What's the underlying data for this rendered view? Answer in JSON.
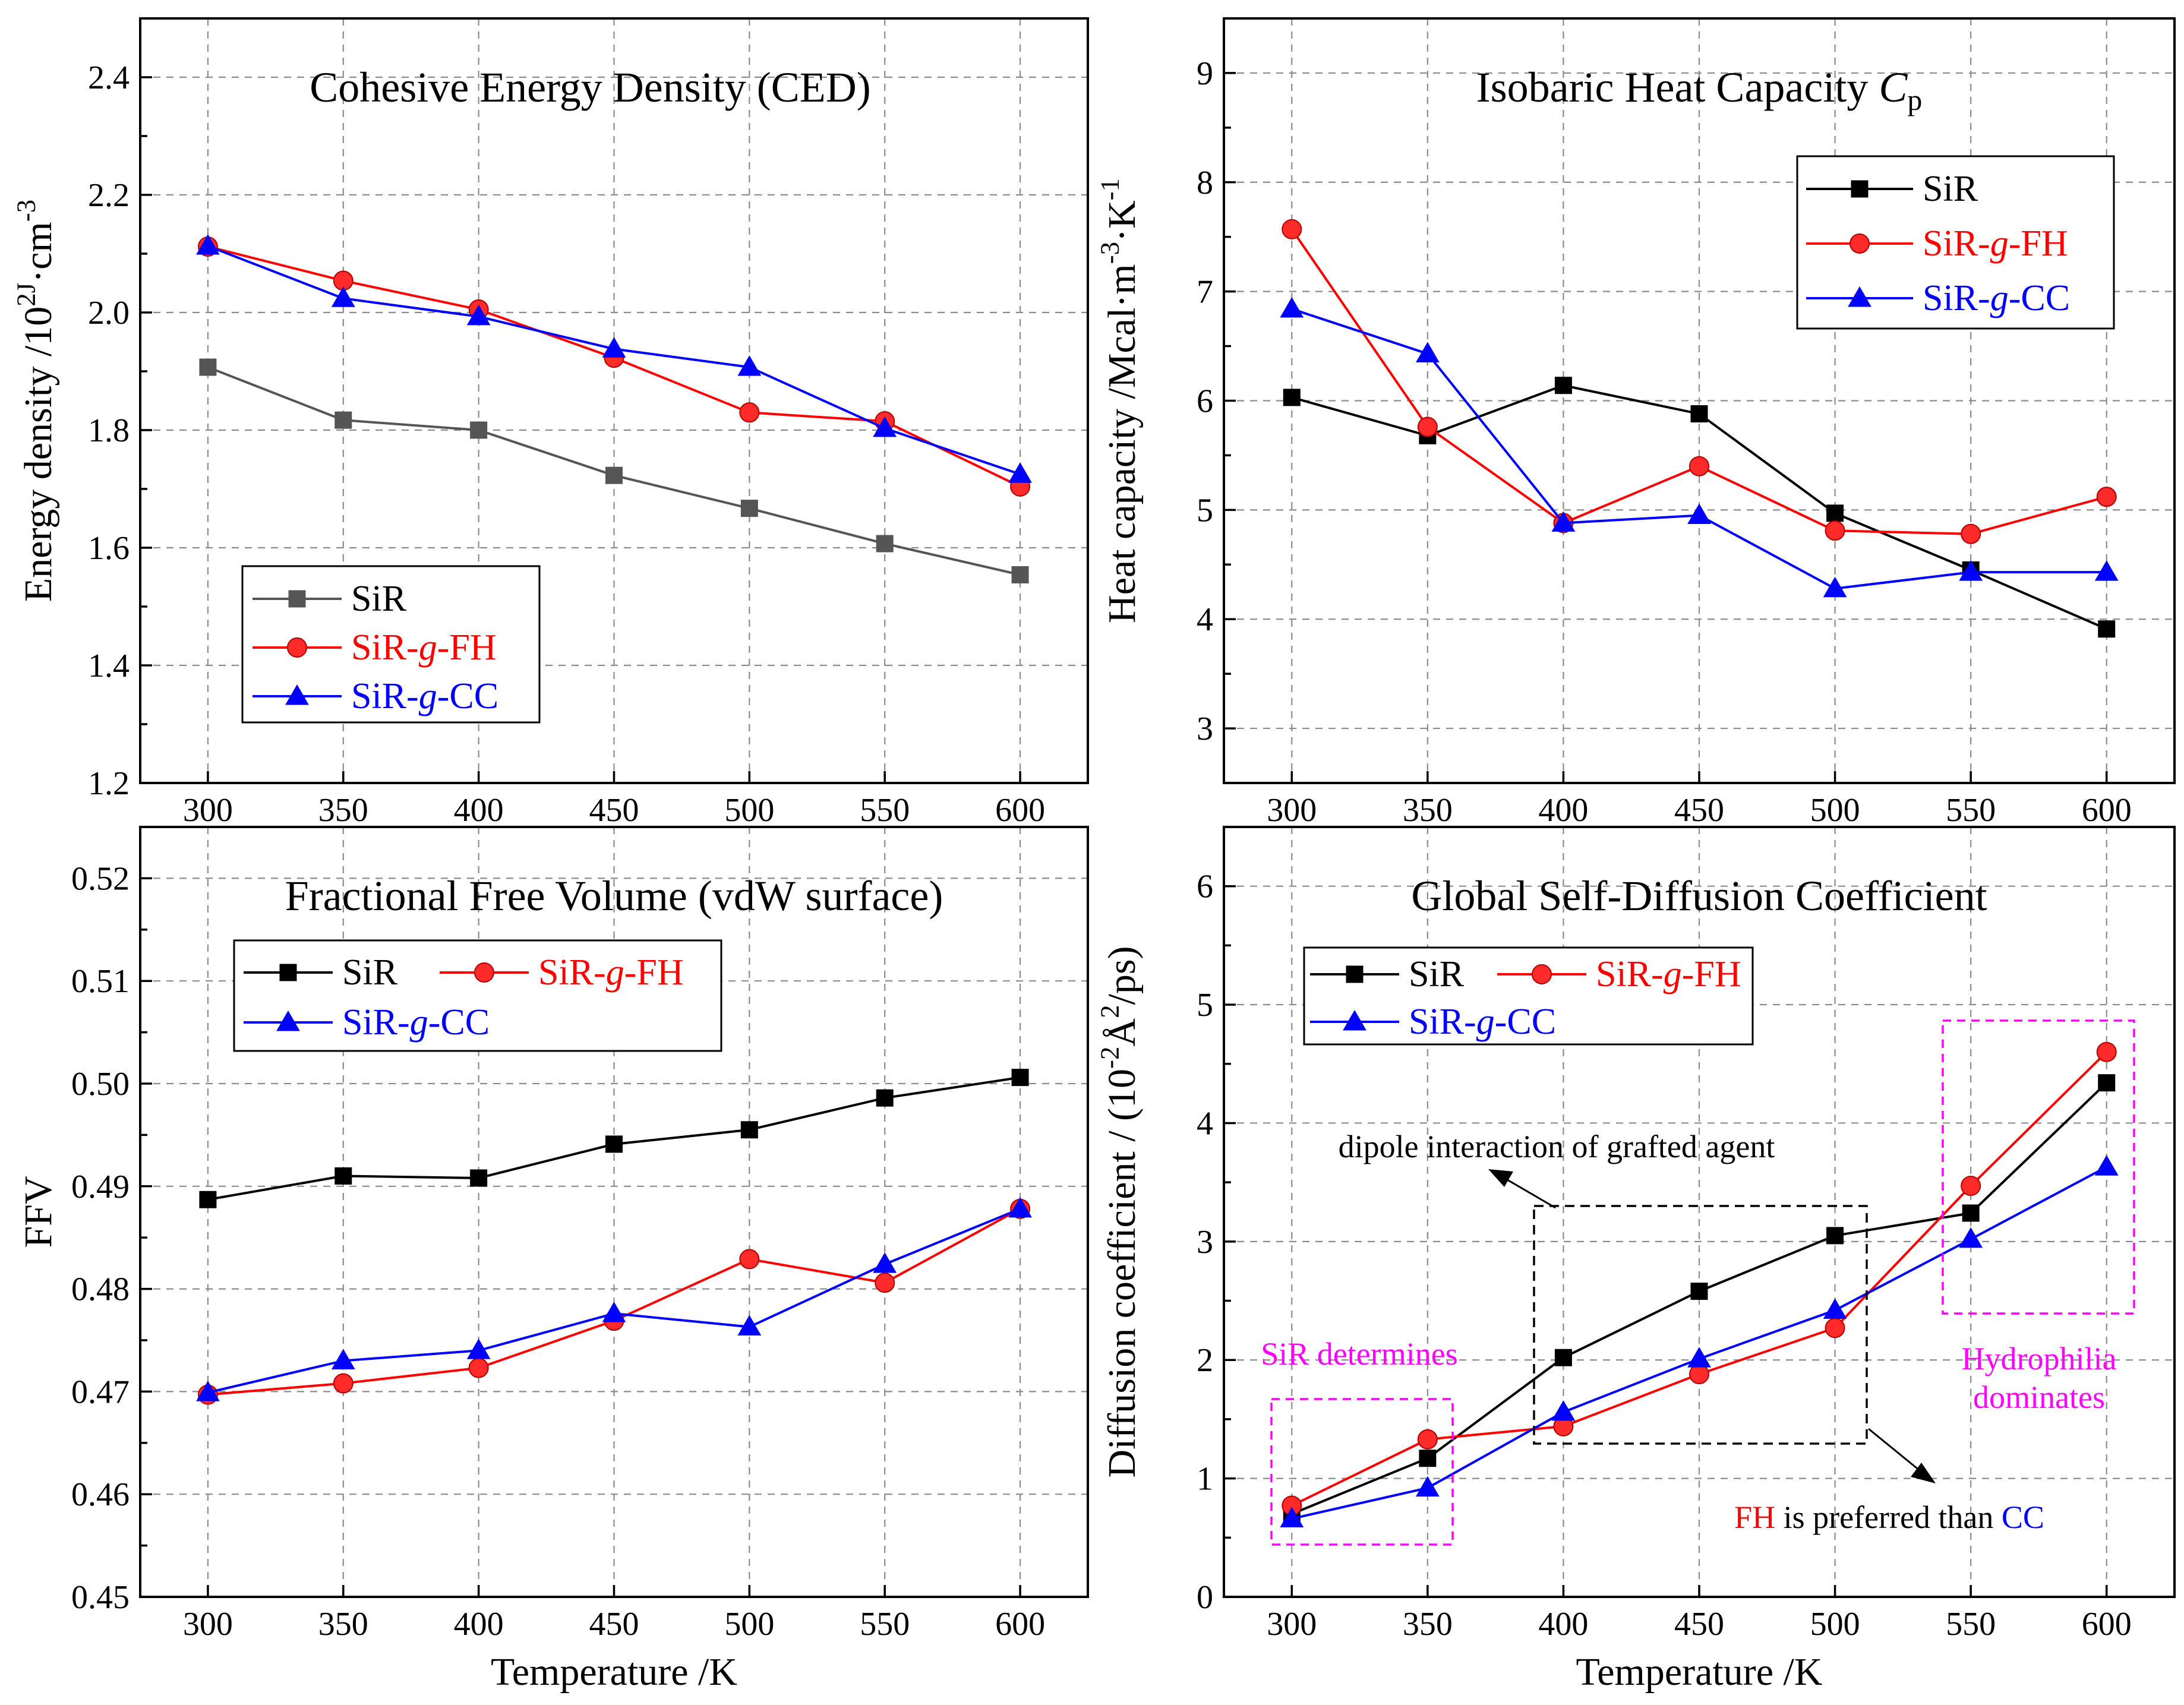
{
  "figure": {
    "x_axis_label": "Temperature /K"
  },
  "chart_data": [
    {
      "type": "line",
      "title": "Cohesive Energy Density (CED)",
      "xlabel": "Temperature /K",
      "ylabel": "Energy density /10^2J·cm^-3",
      "x": [
        300,
        350,
        400,
        450,
        500,
        550,
        600
      ],
      "xlim": [
        275,
        625
      ],
      "ylim": [
        1.2,
        2.5
      ],
      "yticks": [
        "1.2",
        "1.4",
        "1.6",
        "1.8",
        "2.0",
        "2.2",
        "2.4"
      ],
      "legend_position": "bottom-left",
      "series": [
        {
          "name": "SiR",
          "color": "#555555",
          "marker": "square",
          "values": [
            1.907,
            1.817,
            1.8,
            1.723,
            1.667,
            1.607,
            1.554
          ]
        },
        {
          "name": "SiR-g-FH",
          "color": "#ff0000",
          "marker": "circle",
          "values": [
            2.112,
            2.054,
            2.005,
            1.923,
            1.83,
            1.815,
            1.704
          ]
        },
        {
          "name": "SiR-g-CC",
          "color": "#0000ff",
          "marker": "triangle",
          "values": [
            2.113,
            2.024,
            1.993,
            1.938,
            1.907,
            1.803,
            1.725
          ]
        }
      ]
    },
    {
      "type": "line",
      "title": "Isobaric Heat Capacity Cp",
      "xlabel": "Temperature /K",
      "ylabel": "Heat capacity /Mcal·m^-3·K^-1",
      "x": [
        300,
        350,
        400,
        450,
        500,
        550,
        600
      ],
      "xlim": [
        275,
        625
      ],
      "ylim": [
        2.5,
        9.5
      ],
      "yticks": [
        "3",
        "4",
        "5",
        "6",
        "7",
        "8",
        "9"
      ],
      "legend_position": "top-right",
      "series": [
        {
          "name": "SiR",
          "color": "#000000",
          "marker": "square",
          "values": [
            6.03,
            5.68,
            6.14,
            5.88,
            4.97,
            4.45,
            3.91
          ]
        },
        {
          "name": "SiR-g-FH",
          "color": "#ff0000",
          "marker": "circle",
          "values": [
            7.57,
            5.76,
            4.88,
            5.4,
            4.81,
            4.78,
            5.12
          ]
        },
        {
          "name": "SiR-g-CC",
          "color": "#0000ff",
          "marker": "triangle",
          "values": [
            6.84,
            6.43,
            4.88,
            4.95,
            4.28,
            4.43,
            4.43
          ]
        }
      ]
    },
    {
      "type": "line",
      "title": "Fractional Free Volume (vdW surface)",
      "xlabel": "Temperature /K",
      "ylabel": "FFV",
      "x": [
        300,
        350,
        400,
        450,
        500,
        550,
        600
      ],
      "xlim": [
        275,
        625
      ],
      "ylim": [
        0.45,
        0.525
      ],
      "yticks": [
        "0.45",
        "0.46",
        "0.47",
        "0.48",
        "0.49",
        "0.50",
        "0.51",
        "0.52"
      ],
      "legend_position": "top-left",
      "series": [
        {
          "name": "SiR",
          "color": "#000000",
          "marker": "square",
          "values": [
            0.4887,
            0.491,
            0.4908,
            0.4941,
            0.4955,
            0.4986,
            0.5006
          ]
        },
        {
          "name": "SiR-g-FH",
          "color": "#ff0000",
          "marker": "circle",
          "values": [
            0.4697,
            0.4708,
            0.4723,
            0.4769,
            0.4829,
            0.4806,
            0.4878
          ]
        },
        {
          "name": "SiR-g-CC",
          "color": "#0000ff",
          "marker": "triangle",
          "values": [
            0.4699,
            0.473,
            0.474,
            0.4776,
            0.4763,
            0.4824,
            0.4878
          ]
        }
      ]
    },
    {
      "type": "line",
      "title": "Global Self-Diffusion Coefficient",
      "xlabel": "Temperature /K",
      "ylabel": "Diffusion coefficient / (10^-2Å^2/ps)",
      "x": [
        300,
        350,
        400,
        450,
        500,
        550,
        600
      ],
      "xlim": [
        275,
        625
      ],
      "ylim": [
        0,
        6.5
      ],
      "yticks": [
        "0",
        "1",
        "2",
        "3",
        "4",
        "5",
        "6"
      ],
      "legend_position": "top-left",
      "series": [
        {
          "name": "SiR",
          "color": "#000000",
          "marker": "square",
          "values": [
            0.7,
            1.17,
            2.02,
            2.58,
            3.05,
            3.24,
            4.34
          ]
        },
        {
          "name": "SiR-g-FH",
          "color": "#ff0000",
          "marker": "circle",
          "values": [
            0.77,
            1.33,
            1.44,
            1.88,
            2.27,
            3.47,
            4.6
          ]
        },
        {
          "name": "SiR-g-CC",
          "color": "#0000ff",
          "marker": "triangle",
          "values": [
            0.66,
            0.92,
            1.56,
            2.01,
            2.42,
            3.02,
            3.63
          ]
        }
      ],
      "annotations": {
        "dipole": "dipole interaction of grafted agent",
        "sir_determines": "SiR determines",
        "hydrophilia_line1": "Hydrophilia",
        "hydrophilia_line2": "dominates",
        "pref_fh": "FH",
        "pref_mid": " is preferred than ",
        "pref_cc": "CC"
      }
    }
  ]
}
